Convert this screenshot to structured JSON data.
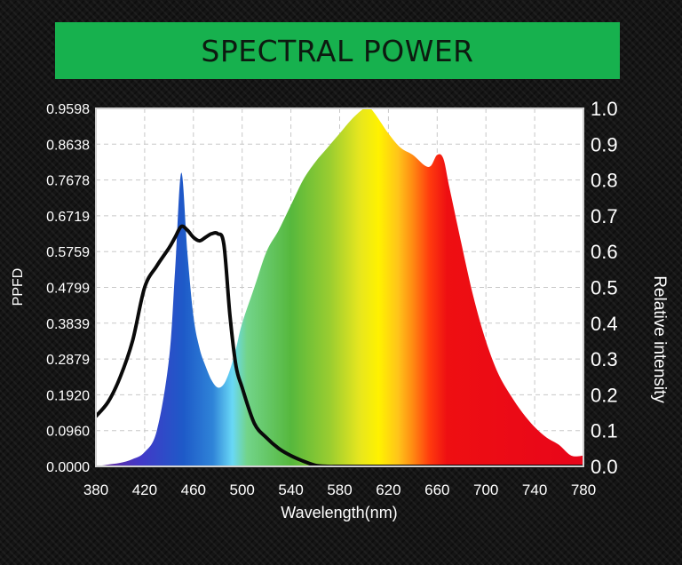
{
  "banner": {
    "title": "SPECTRAL POWER"
  },
  "chart_data": {
    "type": "area",
    "xlabel": "Wavelength(nm)",
    "ylabel_left": "PPFD",
    "ylabel_right": "Relative intensity",
    "xlim": [
      380,
      780
    ],
    "ylim_left": [
      0,
      0.9598
    ],
    "ylim_right": [
      0,
      1.0
    ],
    "grid": true,
    "x_ticks": [
      "380",
      "420",
      "460",
      "500",
      "540",
      "580",
      "620",
      "660",
      "700",
      "740",
      "780"
    ],
    "y_ticks_left": [
      "0.0000",
      "0.0960",
      "0.1920",
      "0.2879",
      "0.3839",
      "0.4799",
      "0.5759",
      "0.6719",
      "0.7678",
      "0.8638",
      "0.9598"
    ],
    "y_ticks_right": [
      "0.0",
      "0.1",
      "0.2",
      "0.3",
      "0.4",
      "0.5",
      "0.6",
      "0.7",
      "0.8",
      "0.9",
      "1.0"
    ],
    "series": [
      {
        "type": "area",
        "x": [
          380,
          390,
          400,
          410,
          420,
          430,
          440,
          445,
          450,
          455,
          460,
          465,
          470,
          475,
          480,
          485,
          490,
          495,
          500,
          510,
          520,
          530,
          540,
          550,
          560,
          570,
          580,
          590,
          600,
          605,
          610,
          620,
          630,
          640,
          650,
          655,
          660,
          665,
          670,
          680,
          690,
          700,
          710,
          720,
          730,
          740,
          750,
          760,
          770,
          780
        ],
        "y": [
          0.0,
          0.005,
          0.01,
          0.02,
          0.04,
          0.1,
          0.3,
          0.55,
          0.82,
          0.6,
          0.42,
          0.33,
          0.28,
          0.24,
          0.22,
          0.23,
          0.27,
          0.33,
          0.4,
          0.5,
          0.6,
          0.66,
          0.73,
          0.8,
          0.85,
          0.89,
          0.93,
          0.97,
          1.0,
          1.0,
          0.98,
          0.93,
          0.89,
          0.87,
          0.84,
          0.84,
          0.87,
          0.86,
          0.78,
          0.62,
          0.47,
          0.35,
          0.26,
          0.2,
          0.15,
          0.11,
          0.08,
          0.06,
          0.03,
          0.03
        ]
      },
      {
        "type": "line",
        "x": [
          380,
          390,
          400,
          410,
          420,
          430,
          440,
          445,
          450,
          455,
          460,
          465,
          470,
          475,
          480,
          485,
          490,
          495,
          500,
          510,
          520,
          530,
          540,
          550,
          560,
          570,
          580,
          600,
          620,
          660,
          700,
          740,
          780
        ],
        "y": [
          0.14,
          0.18,
          0.25,
          0.35,
          0.5,
          0.56,
          0.61,
          0.64,
          0.67,
          0.66,
          0.64,
          0.63,
          0.64,
          0.65,
          0.65,
          0.62,
          0.42,
          0.28,
          0.22,
          0.12,
          0.08,
          0.05,
          0.03,
          0.015,
          0.003,
          0.0,
          0.0,
          0.0,
          0.0,
          0.0,
          0.0,
          0.0,
          0.0
        ]
      }
    ]
  }
}
